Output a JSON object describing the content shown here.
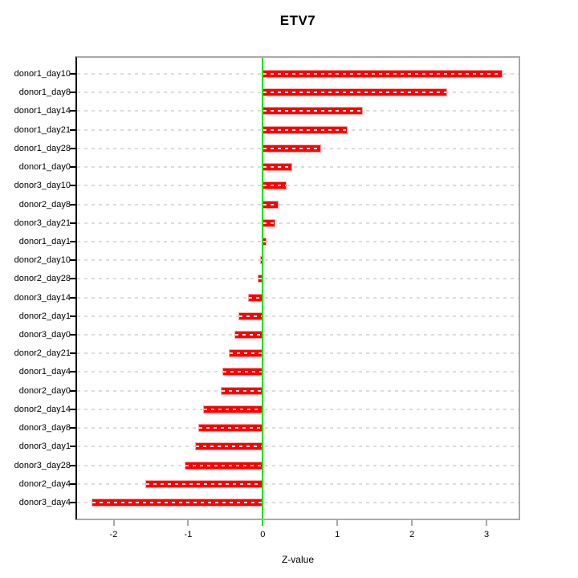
{
  "title": "ETV7",
  "xlabel": "Z-value",
  "colors": {
    "bar": "#fb0000",
    "bar_edge": "#ffa3a3",
    "zero_line": "#00e400",
    "grid": "#dcdcdc",
    "box": "#a9a9a9",
    "y_axis": "#000000"
  },
  "chart_data": {
    "type": "bar",
    "orientation": "horizontal",
    "title": "ETV7",
    "xlabel": "Z-value",
    "ylabel": "",
    "categories": [
      "donor1_day10",
      "donor1_day8",
      "donor1_day14",
      "donor1_day21",
      "donor1_day28",
      "donor1_day0",
      "donor3_day10",
      "donor2_day8",
      "donor3_day21",
      "donor1_day1",
      "donor2_day10",
      "donor2_day28",
      "donor3_day14",
      "donor2_day1",
      "donor3_day0",
      "donor2_day21",
      "donor1_day4",
      "donor2_day0",
      "donor2_day14",
      "donor3_day8",
      "donor3_day1",
      "donor3_day28",
      "donor2_day4",
      "donor3_day4"
    ],
    "values": [
      3.22,
      2.47,
      1.34,
      1.14,
      0.78,
      0.39,
      0.32,
      0.21,
      0.17,
      0.05,
      -0.04,
      -0.07,
      -0.2,
      -0.33,
      -0.38,
      -0.46,
      -0.54,
      -0.56,
      -0.8,
      -0.86,
      -0.91,
      -1.05,
      -1.57,
      -2.3
    ],
    "xlim": [
      -2.49,
      3.43
    ],
    "xticks": [
      -2,
      -1,
      0,
      1,
      2,
      3
    ],
    "xtick_labels": [
      "-2",
      "-1",
      "0",
      "1",
      "2",
      "3"
    ],
    "grid": "horizontal-dashed-per-row",
    "zero_reference_line": 0,
    "legend": "none"
  }
}
